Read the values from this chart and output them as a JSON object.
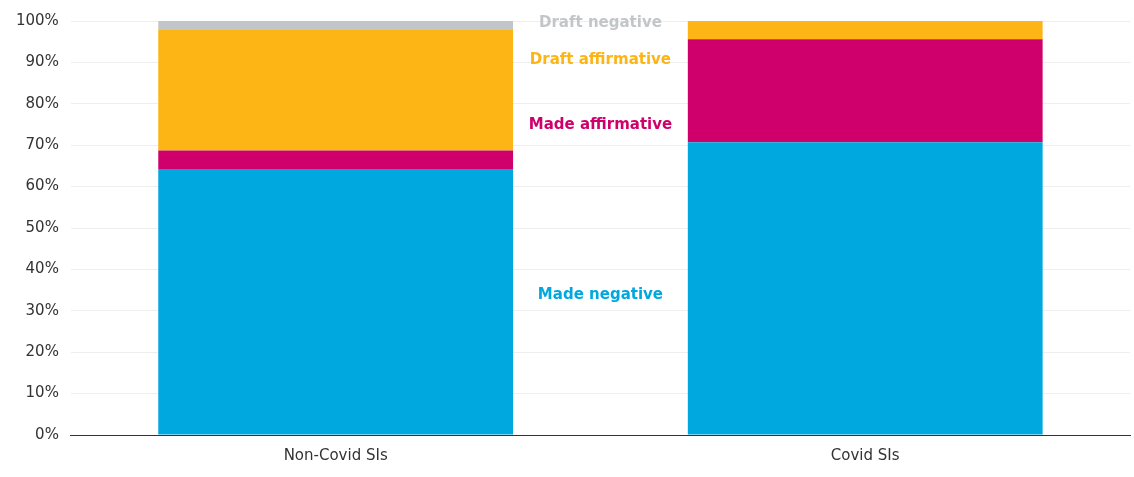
{
  "chart_data": {
    "type": "bar",
    "stacked": true,
    "categories": [
      "Non-Covid SIs",
      "Covid SIs"
    ],
    "series": [
      {
        "name": "Made negative",
        "color": "#00a8e0",
        "values": [
          64.1,
          70.7
        ]
      },
      {
        "name": "Made affirmative",
        "color": "#cf006b",
        "values": [
          4.6,
          24.9
        ]
      },
      {
        "name": "Draft affirmative",
        "color": "#fdb515",
        "values": [
          29.3,
          4.4
        ]
      },
      {
        "name": "Draft negative",
        "color": "#c3c6c8",
        "values": [
          2.0,
          0
        ]
      }
    ],
    "ylim": [
      0,
      100
    ],
    "yticks": [
      {
        "value": 0,
        "label": "0%"
      },
      {
        "value": 10,
        "label": "10%"
      },
      {
        "value": 20,
        "label": "20%"
      },
      {
        "value": 30,
        "label": "30%"
      },
      {
        "value": 40,
        "label": "40%"
      },
      {
        "value": 50,
        "label": "50%"
      },
      {
        "value": 60,
        "label": "60%"
      },
      {
        "value": 70,
        "label": "70%"
      },
      {
        "value": 80,
        "label": "80%"
      },
      {
        "value": 90,
        "label": "90%"
      },
      {
        "value": 100,
        "label": "100%"
      }
    ],
    "grid": "y",
    "legend": false
  }
}
